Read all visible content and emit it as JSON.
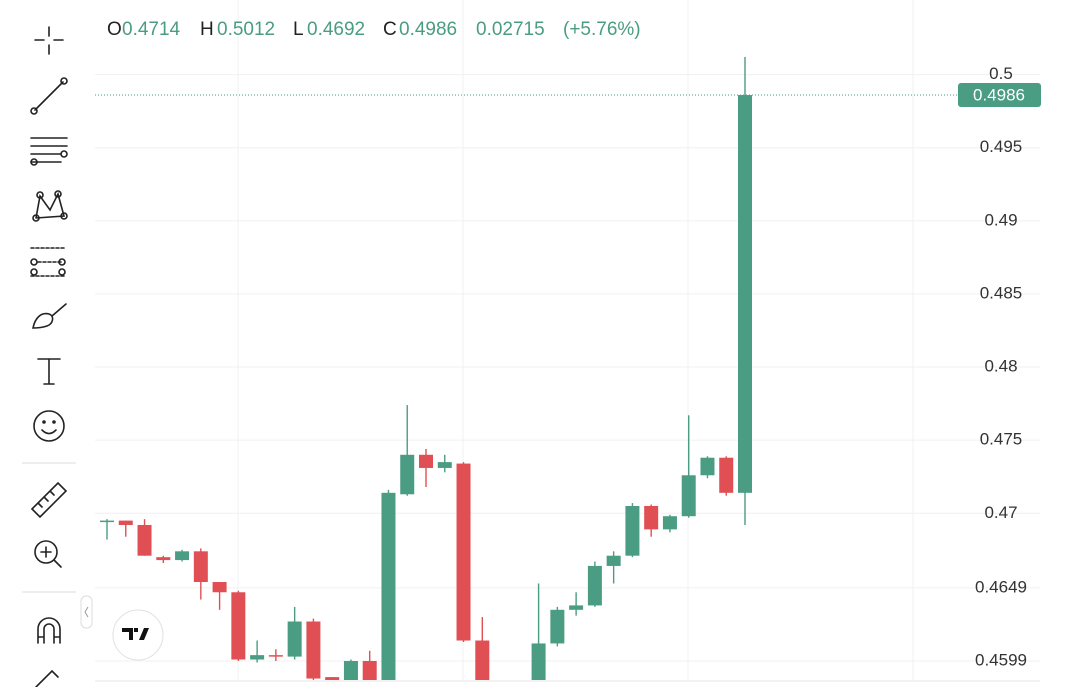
{
  "chart_data": {
    "type": "candlestick",
    "legend": {
      "open_label": "O",
      "open": 0.4714,
      "high_label": "H",
      "high": 0.5012,
      "low_label": "L",
      "low": 0.4692,
      "close_label": "C",
      "close": 0.4986,
      "change": 0.02715,
      "change_percent": {
        "value": 5.76,
        "label": "(+5.76%)"
      }
    },
    "last_price": 0.4986,
    "up_color": "#4a9c82",
    "down_color": "#e04f54",
    "open": [
      0.4694,
      0.4695,
      0.4692,
      0.467,
      0.4668,
      0.4674,
      0.4653,
      0.4646,
      0.46,
      0.4603,
      0.4602,
      0.4626,
      0.4588,
      0.4582,
      0.4599,
      0.458,
      0.4713,
      0.474,
      0.4731,
      0.4734,
      0.4613,
      null,
      null,
      0.458,
      0.4611,
      0.4634,
      0.4637,
      0.4664,
      0.4671,
      0.4705,
      0.4689,
      0.4698,
      0.4726,
      0.4738,
      0.4714
    ],
    "high": [
      0.4696,
      0.4695,
      0.4696,
      0.4671,
      0.4675,
      0.4676,
      0.4653,
      0.4647,
      0.4613,
      0.4607,
      0.4636,
      0.4628,
      0.4588,
      0.46,
      0.4606,
      0.4716,
      0.4774,
      0.4744,
      0.474,
      0.4735,
      0.4629,
      null,
      null,
      0.4652,
      0.4636,
      0.4646,
      0.4667,
      0.4674,
      0.4707,
      0.4706,
      0.4699,
      0.4767,
      0.4739,
      0.4739,
      0.5012
    ],
    "low": [
      0.4682,
      0.4684,
      0.4671,
      0.4666,
      0.4667,
      0.4641,
      0.4634,
      0.4599,
      0.4598,
      0.4599,
      0.46,
      0.4586,
      0.4578,
      0.4578,
      0.4575,
      0.4575,
      0.4712,
      0.4718,
      0.4728,
      0.4612,
      0.4575,
      null,
      null,
      0.4575,
      0.4609,
      0.463,
      0.4636,
      0.4652,
      0.467,
      0.4684,
      0.4687,
      0.4697,
      0.4724,
      0.4712,
      0.4692
    ],
    "close": [
      0.4695,
      0.4692,
      0.4671,
      0.4668,
      0.4674,
      0.4653,
      0.4646,
      0.46,
      0.4603,
      0.4602,
      0.4626,
      0.4587,
      0.4582,
      0.4599,
      0.458,
      0.4714,
      0.474,
      0.4731,
      0.4735,
      0.4613,
      0.458,
      null,
      null,
      0.4611,
      0.4634,
      0.4637,
      0.4664,
      0.4671,
      0.4705,
      0.4689,
      0.4698,
      0.4726,
      0.4738,
      0.4714,
      0.4986
    ],
    "ylim": [
      0.4586,
      0.5051
    ],
    "yticks": [
      0.5,
      0.495,
      0.49,
      0.485,
      0.48,
      0.475,
      0.47,
      0.4649,
      0.4599
    ],
    "grid": true
  }
}
